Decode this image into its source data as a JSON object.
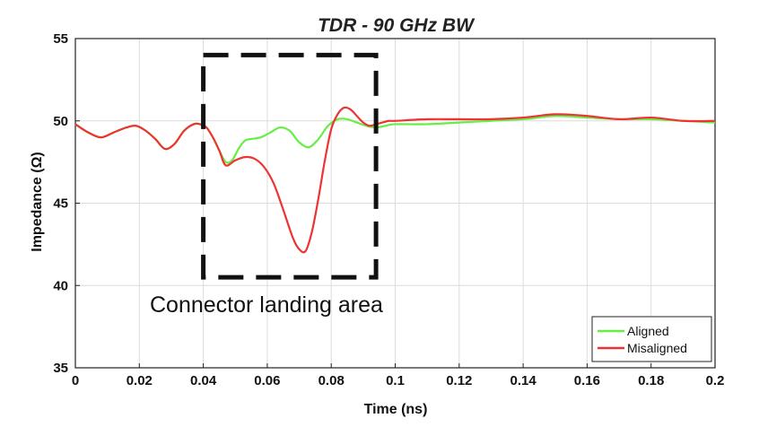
{
  "chart_data": {
    "type": "line",
    "title": "TDR - 90 GHz BW",
    "xlabel": "Time (ns)",
    "ylabel": "Impedance (Ω)",
    "xlim": [
      0,
      0.2
    ],
    "ylim": [
      35,
      55
    ],
    "xticks": [
      0,
      0.02,
      0.04,
      0.06,
      0.08,
      0.1,
      0.12,
      0.14,
      0.16,
      0.18,
      0.2
    ],
    "xtick_labels": [
      "0",
      "0.02",
      "0.04",
      "0.06",
      "0.08",
      "0.1",
      "0.12",
      "0.14",
      "0.16",
      "0.18",
      "0.2"
    ],
    "yticks": [
      35,
      40,
      45,
      50,
      55
    ],
    "ytick_labels": [
      "35",
      "40",
      "45",
      "50",
      "55"
    ],
    "grid": true,
    "legend_position": "bottom-right",
    "series": [
      {
        "name": "Aligned",
        "color": "#66ee44",
        "x": [
          0,
          0.004,
          0.008,
          0.012,
          0.016,
          0.019,
          0.022,
          0.025,
          0.028,
          0.031,
          0.034,
          0.037,
          0.039,
          0.041,
          0.043,
          0.045,
          0.047,
          0.049,
          0.051,
          0.053,
          0.055,
          0.058,
          0.061,
          0.064,
          0.067,
          0.07,
          0.073,
          0.076,
          0.079,
          0.082,
          0.085,
          0.088,
          0.091,
          0.094,
          0.097,
          0.1,
          0.11,
          0.12,
          0.13,
          0.14,
          0.15,
          0.16,
          0.17,
          0.18,
          0.19,
          0.2
        ],
        "y": [
          49.8,
          49.3,
          49.0,
          49.3,
          49.6,
          49.7,
          49.4,
          48.9,
          48.3,
          48.6,
          49.4,
          49.8,
          49.8,
          49.6,
          49.0,
          48.2,
          47.5,
          47.6,
          48.3,
          48.8,
          48.9,
          49.0,
          49.3,
          49.6,
          49.4,
          48.7,
          48.4,
          48.9,
          49.7,
          50.1,
          50.1,
          49.9,
          49.7,
          49.6,
          49.7,
          49.8,
          49.8,
          49.9,
          50.0,
          50.1,
          50.3,
          50.2,
          50.1,
          50.1,
          50.0,
          49.9
        ]
      },
      {
        "name": "Misaligned",
        "color": "#ee3333",
        "x": [
          0,
          0.004,
          0.008,
          0.012,
          0.016,
          0.019,
          0.022,
          0.025,
          0.028,
          0.031,
          0.034,
          0.037,
          0.039,
          0.041,
          0.043,
          0.045,
          0.047,
          0.05,
          0.053,
          0.056,
          0.059,
          0.062,
          0.065,
          0.068,
          0.07,
          0.072,
          0.074,
          0.076,
          0.078,
          0.08,
          0.082,
          0.084,
          0.086,
          0.088,
          0.09,
          0.092,
          0.094,
          0.096,
          0.098,
          0.1,
          0.11,
          0.12,
          0.13,
          0.14,
          0.15,
          0.16,
          0.17,
          0.18,
          0.19,
          0.2
        ],
        "y": [
          49.8,
          49.3,
          49.0,
          49.3,
          49.6,
          49.7,
          49.4,
          48.9,
          48.3,
          48.6,
          49.4,
          49.8,
          49.8,
          49.6,
          49.0,
          48.2,
          47.3,
          47.6,
          47.8,
          47.7,
          47.2,
          46.2,
          44.6,
          42.9,
          42.2,
          42.1,
          43.3,
          45.3,
          47.6,
          49.5,
          50.4,
          50.8,
          50.7,
          50.3,
          49.9,
          49.7,
          49.8,
          49.9,
          50.0,
          50.0,
          50.1,
          50.1,
          50.1,
          50.2,
          50.4,
          50.3,
          50.1,
          50.2,
          50.0,
          50.0
        ]
      }
    ],
    "annotation": {
      "text": "Connector landing area",
      "box_x": [
        0.04,
        0.094
      ],
      "box_y": [
        40.5,
        54
      ]
    }
  }
}
